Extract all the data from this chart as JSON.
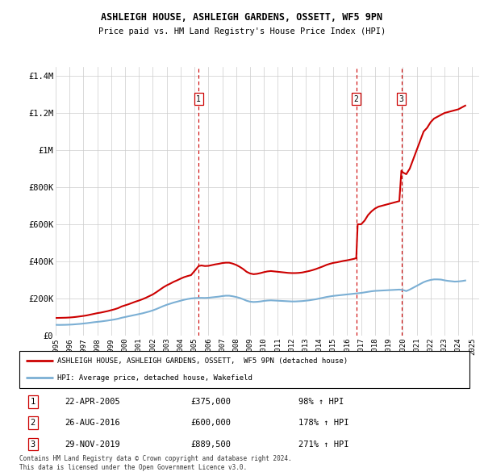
{
  "title": "ASHLEIGH HOUSE, ASHLEIGH GARDENS, OSSETT, WF5 9PN",
  "subtitle": "Price paid vs. HM Land Registry's House Price Index (HPI)",
  "ylabel_ticks": [
    "£0",
    "£200K",
    "£400K",
    "£600K",
    "£800K",
    "£1M",
    "£1.2M",
    "£1.4M"
  ],
  "ylim": [
    0,
    1450000
  ],
  "yticks": [
    0,
    200000,
    400000,
    600000,
    800000,
    1000000,
    1200000,
    1400000
  ],
  "legend_line1": "ASHLEIGH HOUSE, ASHLEIGH GARDENS, OSSETT,  WF5 9PN (detached house)",
  "legend_line2": "HPI: Average price, detached house, Wakefield",
  "transactions": [
    {
      "num": 1,
      "date": "22-APR-2005",
      "price": "375,000",
      "pct": "98%",
      "year": 2005.3
    },
    {
      "num": 2,
      "date": "26-AUG-2016",
      "price": "600,000",
      "pct": "178%",
      "year": 2016.65
    },
    {
      "num": 3,
      "date": "29-NOV-2019",
      "price": "889,500",
      "pct": "271%",
      "year": 2019.9
    }
  ],
  "transaction_prices": [
    375000,
    600000,
    889500
  ],
  "footnote1": "Contains HM Land Registry data © Crown copyright and database right 2024.",
  "footnote2": "This data is licensed under the Open Government Licence v3.0.",
  "house_color": "#cc0000",
  "hpi_color": "#7bafd4",
  "vline_color": "#cc0000",
  "background_color": "#ffffff",
  "grid_color": "#cccccc",
  "hpi_years": [
    1995.0,
    1995.25,
    1995.5,
    1995.75,
    1996.0,
    1996.25,
    1996.5,
    1996.75,
    1997.0,
    1997.25,
    1997.5,
    1997.75,
    1998.0,
    1998.25,
    1998.5,
    1998.75,
    1999.0,
    1999.25,
    1999.5,
    1999.75,
    2000.0,
    2000.25,
    2000.5,
    2000.75,
    2001.0,
    2001.25,
    2001.5,
    2001.75,
    2002.0,
    2002.25,
    2002.5,
    2002.75,
    2003.0,
    2003.25,
    2003.5,
    2003.75,
    2004.0,
    2004.25,
    2004.5,
    2004.75,
    2005.0,
    2005.25,
    2005.5,
    2005.75,
    2006.0,
    2006.25,
    2006.5,
    2006.75,
    2007.0,
    2007.25,
    2007.5,
    2007.75,
    2008.0,
    2008.25,
    2008.5,
    2008.75,
    2009.0,
    2009.25,
    2009.5,
    2009.75,
    2010.0,
    2010.25,
    2010.5,
    2010.75,
    2011.0,
    2011.25,
    2011.5,
    2011.75,
    2012.0,
    2012.25,
    2012.5,
    2012.75,
    2013.0,
    2013.25,
    2013.5,
    2013.75,
    2014.0,
    2014.25,
    2014.5,
    2014.75,
    2015.0,
    2015.25,
    2015.5,
    2015.75,
    2016.0,
    2016.25,
    2016.5,
    2016.75,
    2017.0,
    2017.25,
    2017.5,
    2017.75,
    2018.0,
    2018.25,
    2018.5,
    2018.75,
    2019.0,
    2019.25,
    2019.5,
    2019.75,
    2020.0,
    2020.25,
    2020.5,
    2020.75,
    2021.0,
    2021.25,
    2021.5,
    2021.75,
    2022.0,
    2022.25,
    2022.5,
    2022.75,
    2023.0,
    2023.25,
    2023.5,
    2023.75,
    2024.0,
    2024.25,
    2024.5
  ],
  "hpi_vals": [
    58000,
    57500,
    57800,
    58200,
    59000,
    60000,
    61500,
    63000,
    65000,
    67000,
    69500,
    72000,
    74000,
    76000,
    78500,
    81000,
    84000,
    87000,
    91000,
    96000,
    100000,
    104000,
    108000,
    112000,
    116000,
    120000,
    125000,
    130000,
    136000,
    143000,
    151000,
    159000,
    166000,
    172000,
    178000,
    183000,
    188000,
    193000,
    197000,
    200000,
    202000,
    203000,
    203500,
    203000,
    204000,
    206000,
    208000,
    210000,
    213000,
    215000,
    215000,
    212000,
    208000,
    203000,
    196000,
    188000,
    183000,
    181000,
    182000,
    184000,
    187000,
    189000,
    190000,
    189000,
    188000,
    187000,
    186000,
    185000,
    184000,
    184000,
    185000,
    186000,
    188000,
    190000,
    193000,
    196000,
    200000,
    204000,
    208000,
    211000,
    214000,
    216000,
    218000,
    220000,
    222000,
    224000,
    226000,
    228000,
    230000,
    233000,
    236000,
    239000,
    241000,
    242000,
    243000,
    244000,
    245000,
    246000,
    247000,
    248000,
    246000,
    240000,
    248000,
    258000,
    268000,
    278000,
    288000,
    295000,
    300000,
    303000,
    303000,
    302000,
    298000,
    295000,
    293000,
    291000,
    292000,
    294000,
    297000
  ],
  "house_years": [
    1995.0,
    1995.25,
    1995.5,
    1995.75,
    1996.0,
    1996.25,
    1996.5,
    1996.75,
    1997.0,
    1997.25,
    1997.5,
    1997.75,
    1998.0,
    1998.25,
    1998.5,
    1998.75,
    1999.0,
    1999.25,
    1999.5,
    1999.75,
    2000.0,
    2000.25,
    2000.5,
    2000.75,
    2001.0,
    2001.25,
    2001.5,
    2001.75,
    2002.0,
    2002.25,
    2002.5,
    2002.75,
    2003.0,
    2003.25,
    2003.5,
    2003.75,
    2004.0,
    2004.25,
    2004.5,
    2004.75,
    2005.3,
    2005.5,
    2005.75,
    2006.0,
    2006.25,
    2006.5,
    2006.75,
    2007.0,
    2007.25,
    2007.5,
    2007.75,
    2008.0,
    2008.25,
    2008.5,
    2008.75,
    2009.0,
    2009.25,
    2009.5,
    2009.75,
    2010.0,
    2010.25,
    2010.5,
    2010.75,
    2011.0,
    2011.25,
    2011.5,
    2011.75,
    2012.0,
    2012.25,
    2012.5,
    2012.75,
    2013.0,
    2013.25,
    2013.5,
    2013.75,
    2014.0,
    2014.25,
    2014.5,
    2014.75,
    2015.0,
    2015.25,
    2015.5,
    2015.75,
    2016.0,
    2016.25,
    2016.5,
    2016.65,
    2016.75,
    2017.0,
    2017.25,
    2017.5,
    2017.75,
    2018.0,
    2018.25,
    2018.5,
    2018.75,
    2019.0,
    2019.25,
    2019.5,
    2019.75,
    2019.9,
    2020.0,
    2020.25,
    2020.5,
    2020.75,
    2021.0,
    2021.25,
    2021.5,
    2021.75,
    2022.0,
    2022.25,
    2022.5,
    2022.75,
    2023.0,
    2023.25,
    2023.5,
    2023.75,
    2024.0,
    2024.25,
    2024.5
  ],
  "house_vals": [
    95000,
    95500,
    96000,
    96500,
    97500,
    99000,
    101000,
    103500,
    106000,
    109000,
    113000,
    117000,
    121000,
    124000,
    128000,
    132000,
    137000,
    142000,
    148000,
    157000,
    163000,
    169000,
    176000,
    183000,
    189000,
    196000,
    204000,
    213000,
    222000,
    234000,
    247000,
    260000,
    271000,
    280000,
    290000,
    298000,
    307000,
    315000,
    321000,
    326000,
    375000,
    378000,
    375000,
    376000,
    380000,
    384000,
    387000,
    391000,
    393000,
    393000,
    388000,
    381000,
    371000,
    359000,
    344000,
    335000,
    331000,
    333000,
    337000,
    342000,
    346000,
    348000,
    346000,
    344000,
    342000,
    340000,
    338000,
    337000,
    337000,
    338000,
    340000,
    344000,
    348000,
    353000,
    359000,
    366000,
    373000,
    381000,
    387000,
    392000,
    395000,
    399000,
    403000,
    406000,
    410000,
    414000,
    418000,
    600000,
    600000,
    620000,
    650000,
    670000,
    685000,
    695000,
    700000,
    705000,
    710000,
    715000,
    720000,
    725000,
    889500,
    880000,
    870000,
    900000,
    950000,
    1000000,
    1050000,
    1100000,
    1120000,
    1150000,
    1170000,
    1180000,
    1190000,
    1200000,
    1205000,
    1210000,
    1215000,
    1220000,
    1230000,
    1240000
  ]
}
